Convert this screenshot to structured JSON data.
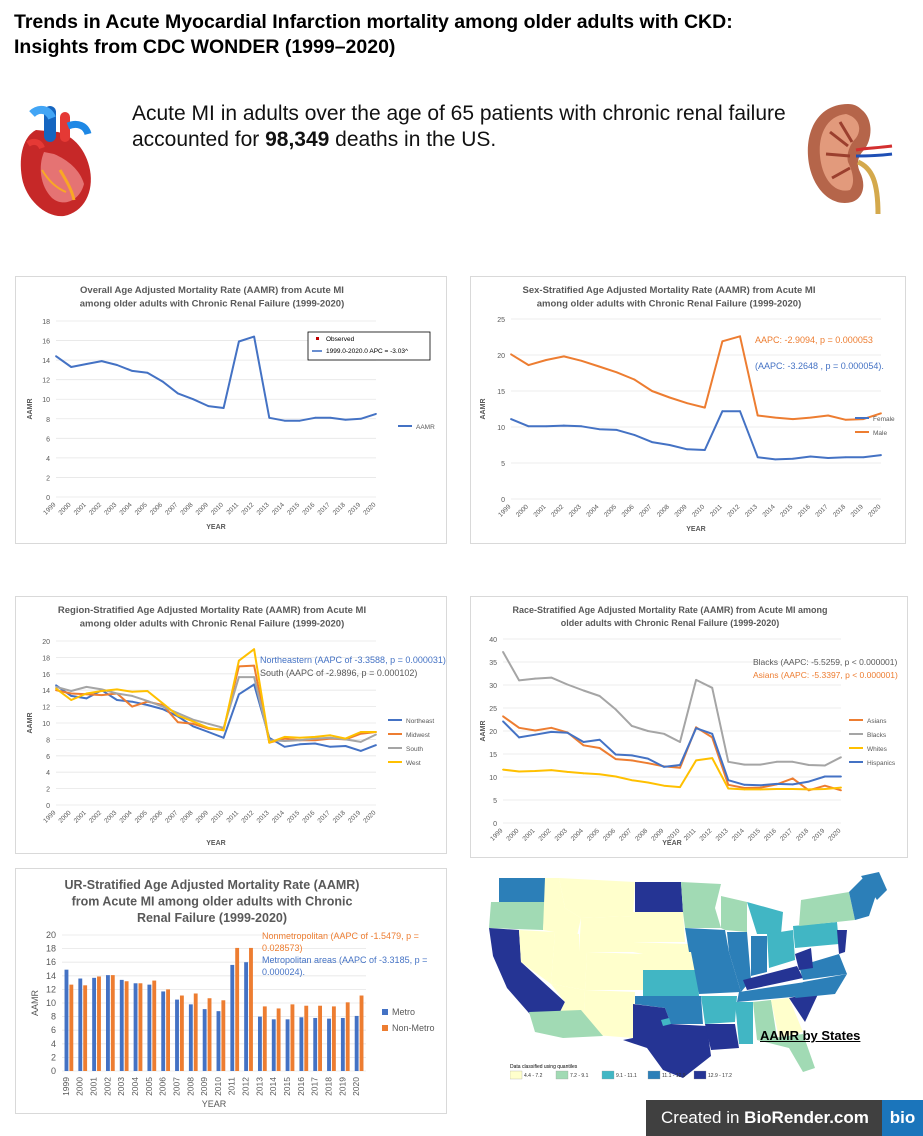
{
  "page": {
    "title_line1": "Trends in Acute Myocardial Infarction mortality among older adults with CKD:",
    "title_line2": "Insights from CDC WONDER (1999–2020)",
    "summary_pre": "Acute MI in adults over the age of 65 patients with chronic renal failure accounted for ",
    "summary_bold": "98,349",
    "summary_post": " deaths in the US.",
    "heart_icon": "heart-icon",
    "kidney_icon": "kidney-icon"
  },
  "map": {
    "title": "AAMR by States",
    "legend_title": "Data classified using quantiles",
    "legend": [
      {
        "label": "4.4 - 7.2",
        "color": "#ffffcc"
      },
      {
        "label": "7.2 - 9.1",
        "color": "#a1dab4"
      },
      {
        "label": "9.1 - 11.1",
        "color": "#41b6c4"
      },
      {
        "label": "11.1 - 12.9",
        "color": "#2c7fb8"
      },
      {
        "label": "12.9 - 17.2",
        "color": "#253494"
      }
    ]
  },
  "footer": {
    "created": "Created in ",
    "brand": "BioRender.com",
    "logo": "bio"
  },
  "chart_data": [
    {
      "type": "line",
      "title_lines": [
        "Overall Age Adjusted Mortality Rate (AAMR) from Acute MI",
        "among older adults with Chronic Renal Failure (1999-2020)"
      ],
      "xlabel": "YEAR",
      "ylabel": "AAMR",
      "x": [
        "1999",
        "2000",
        "2001",
        "2002",
        "2003",
        "2004",
        "2005",
        "2006",
        "2007",
        "2008",
        "2009",
        "2010",
        "2011",
        "2012",
        "2013",
        "2014",
        "2015",
        "2016",
        "2017",
        "2018",
        "2019",
        "2020"
      ],
      "ylim": [
        0,
        18
      ],
      "ystep": 2,
      "series": [
        {
          "name": "AAMR",
          "color": "#4472c4",
          "values": [
            14.4,
            13.3,
            13.6,
            13.9,
            13.5,
            12.9,
            12.7,
            11.8,
            10.6,
            10.0,
            9.3,
            9.1,
            15.9,
            16.4,
            8.1,
            7.8,
            7.8,
            8.1,
            8.1,
            7.9,
            8.0,
            8.5
          ]
        }
      ],
      "legend_box": [
        "Observed",
        "1999.0-2020.0 APC  =  -3.03^"
      ],
      "legend_box_colors": [
        "#c00000",
        "#4472c4"
      ],
      "legend_right": [
        "AAMR"
      ],
      "annotations": []
    },
    {
      "type": "line",
      "title_lines": [
        "Sex-Stratified Age Adjusted Mortality Rate (AAMR) from Acute MI",
        "among older adults with Chronic Renal Failure (1999-2020)"
      ],
      "xlabel": "YEAR",
      "ylabel": "AAMR",
      "x": [
        "1999",
        "2000",
        "2001",
        "2002",
        "2003",
        "2004",
        "2005",
        "2006",
        "2007",
        "2008",
        "2009",
        "2010",
        "2011",
        "2012",
        "2013",
        "2014",
        "2015",
        "2016",
        "2017",
        "2018",
        "2019",
        "2020"
      ],
      "ylim": [
        0,
        25
      ],
      "ystep": 5,
      "series": [
        {
          "name": "Female",
          "color": "#4472c4",
          "values": [
            11.1,
            10.1,
            10.1,
            10.2,
            10.1,
            9.7,
            9.6,
            8.9,
            7.9,
            7.5,
            6.9,
            6.8,
            12.2,
            12.2,
            5.8,
            5.5,
            5.6,
            5.9,
            5.7,
            5.8,
            5.8,
            6.1
          ]
        },
        {
          "name": "Male",
          "color": "#ed7d31",
          "values": [
            20.1,
            18.6,
            19.3,
            19.8,
            19.2,
            18.4,
            17.6,
            16.6,
            15.0,
            14.1,
            13.3,
            12.7,
            21.9,
            22.6,
            11.6,
            11.3,
            11.1,
            11.3,
            11.6,
            11.0,
            11.1,
            11.9
          ]
        }
      ],
      "legend_right": [
        "Female",
        "Male"
      ],
      "annotations": [
        {
          "text": "AAPC: -2.9094, p = 0.000053",
          "color": "#ed7d31"
        },
        {
          "text": "(AAPC: -3.2648 , p = 0.000054).",
          "color": "#4472c4"
        }
      ]
    },
    {
      "type": "line",
      "title_lines": [
        "Region-Stratified Age Adjusted Mortality Rate (AAMR) from Acute MI",
        "among older adults with Chronic Renal Failure (1999-2020)"
      ],
      "xlabel": "YEAR",
      "ylabel": "AAMR",
      "x": [
        "1999",
        "2000",
        "2001",
        "2002",
        "2003",
        "2004",
        "2005",
        "2006",
        "2007",
        "2008",
        "2009",
        "2010",
        "2011",
        "2012",
        "2013",
        "2014",
        "2015",
        "2016",
        "2017",
        "2018",
        "2019",
        "2020"
      ],
      "ylim": [
        0,
        20
      ],
      "ystep": 2,
      "series": [
        {
          "name": "Northeast",
          "color": "#4472c4",
          "values": [
            14.6,
            13.3,
            13.0,
            14.0,
            12.8,
            12.6,
            12.2,
            11.7,
            10.8,
            9.6,
            8.9,
            8.2,
            13.5,
            14.7,
            8.2,
            7.1,
            7.4,
            7.5,
            7.1,
            7.2,
            6.6,
            7.3
          ]
        },
        {
          "name": "Midwest",
          "color": "#ed7d31",
          "values": [
            14.0,
            13.6,
            13.5,
            13.4,
            13.6,
            12.0,
            12.6,
            12.2,
            10.1,
            9.9,
            9.3,
            9.2,
            16.9,
            17.0,
            7.6,
            8.1,
            7.9,
            7.9,
            8.1,
            8.0,
            8.7,
            8.9
          ]
        },
        {
          "name": "South",
          "color": "#a5a5a5",
          "values": [
            14.4,
            13.9,
            14.4,
            14.1,
            13.6,
            13.3,
            12.7,
            12.0,
            11.2,
            10.4,
            9.9,
            9.4,
            15.6,
            15.6,
            7.9,
            7.8,
            7.9,
            8.1,
            8.2,
            8.0,
            7.7,
            8.6
          ]
        },
        {
          "name": "West",
          "color": "#ffc000",
          "values": [
            14.2,
            12.8,
            13.6,
            13.9,
            14.1,
            13.8,
            13.9,
            12.4,
            10.9,
            10.2,
            9.4,
            9.1,
            17.6,
            19.0,
            7.6,
            8.3,
            8.2,
            8.3,
            8.5,
            8.1,
            8.9,
            8.9
          ]
        }
      ],
      "legend_right": [
        "Northeast",
        "Midwest",
        "South",
        "West"
      ],
      "annotations": [
        {
          "text": "Northeastern (AAPC of -3.3588, p = 0.000031)",
          "color": "#4472c4"
        },
        {
          "text": "South (AAPC of -2.9896, p = 0.000102)",
          "color": "#595959"
        }
      ]
    },
    {
      "type": "line",
      "title_lines": [
        "Race-Stratified Age Adjusted Mortality Rate (AAMR) from Acute MI  among",
        "older adults with Chronic Renal Failure (1999-2020)"
      ],
      "xlabel": "YEAR",
      "ylabel": "AAMR",
      "x": [
        "1999",
        "2000",
        "2001",
        "2002",
        "2003",
        "2004",
        "2005",
        "2006",
        "2007",
        "2008",
        "2009",
        "2010",
        "2011",
        "2012",
        "2013",
        "2014",
        "2015",
        "2016",
        "2017",
        "2018",
        "2019",
        "2020"
      ],
      "ylim": [
        0,
        40
      ],
      "ystep": 5,
      "series": [
        {
          "name": "Asians",
          "color": "#ed7d31",
          "values": [
            23.2,
            20.7,
            20.1,
            20.7,
            19.7,
            16.9,
            16.3,
            13.9,
            13.6,
            13.0,
            12.3,
            12.0,
            20.8,
            18.6,
            8.3,
            7.6,
            7.7,
            8.4,
            9.7,
            7.1,
            8.1,
            7.1
          ]
        },
        {
          "name": "Blacks",
          "color": "#a5a5a5",
          "values": [
            37.2,
            31.0,
            31.4,
            31.6,
            30.1,
            28.8,
            27.6,
            24.7,
            21.1,
            20.0,
            19.4,
            17.6,
            31.1,
            29.4,
            13.3,
            12.7,
            12.7,
            13.3,
            13.3,
            12.6,
            12.5,
            14.3
          ]
        },
        {
          "name": "Whites",
          "color": "#ffc000",
          "values": [
            11.6,
            11.2,
            11.3,
            11.5,
            11.1,
            10.8,
            10.6,
            10.1,
            9.3,
            8.8,
            8.1,
            7.8,
            13.6,
            14.1,
            7.5,
            7.3,
            7.3,
            7.4,
            7.4,
            7.3,
            7.4,
            7.7
          ]
        },
        {
          "name": "Hispanics",
          "color": "#4472c4",
          "values": [
            22.1,
            18.6,
            19.2,
            19.8,
            19.6,
            17.6,
            18.1,
            14.9,
            14.7,
            14.0,
            12.2,
            12.6,
            20.6,
            19.4,
            9.3,
            8.3,
            8.2,
            8.5,
            8.4,
            9.0,
            10.1,
            10.1
          ]
        }
      ],
      "legend_right": [
        "Asians",
        "Blacks",
        "Whites",
        "Hispanics"
      ],
      "annotations": [
        {
          "text": "Blacks (AAPC: -5.5259, p < 0.000001)",
          "color": "#595959"
        },
        {
          "text": "Asians (AAPC: -5.3397, p < 0.000001)",
          "color": "#ed7d31"
        }
      ]
    },
    {
      "type": "bar",
      "title_lines": [
        "UR-Stratified Age Adjusted Mortality Rate (AAMR)",
        "from Acute MI  among older adults with Chronic",
        "Renal Failure (1999-2020)"
      ],
      "xlabel": "YEAR",
      "ylabel": "AAMR",
      "x": [
        "1999",
        "2000",
        "2001",
        "2002",
        "2003",
        "2004",
        "2005",
        "2006",
        "2007",
        "2008",
        "2009",
        "2010",
        "2011",
        "2012",
        "2013",
        "2014",
        "2015",
        "2016",
        "2017",
        "2018",
        "2019",
        "2020"
      ],
      "ylim": [
        0,
        20
      ],
      "ystep": 2,
      "series": [
        {
          "name": "Metro",
          "color": "#4472c4",
          "values": [
            14.9,
            13.6,
            13.7,
            14.1,
            13.4,
            12.9,
            12.7,
            11.7,
            10.5,
            9.8,
            9.1,
            8.8,
            15.6,
            16.0,
            8.0,
            7.6,
            7.6,
            7.9,
            7.8,
            7.7,
            7.8,
            8.1
          ]
        },
        {
          "name": "Non-Metro",
          "color": "#ed7d31",
          "values": [
            12.7,
            12.6,
            13.9,
            14.1,
            13.2,
            12.9,
            13.3,
            12.0,
            11.1,
            11.4,
            10.7,
            10.4,
            18.1,
            18.1,
            9.5,
            9.2,
            9.8,
            9.6,
            9.6,
            9.5,
            10.1,
            11.1
          ]
        }
      ],
      "legend_right": [
        "Metro",
        "Non-Metro"
      ],
      "annotations": [
        {
          "text": "Nonmetropolitan (AAPC of -1.5479, p =",
          "color": "#ed7d31"
        },
        {
          "text": "0.028573)",
          "color": "#ed7d31"
        },
        {
          "text": "Metropolitan areas (AAPC of -3.3185, p =",
          "color": "#4472c4"
        },
        {
          "text": "0.000024).",
          "color": "#4472c4"
        }
      ]
    }
  ]
}
